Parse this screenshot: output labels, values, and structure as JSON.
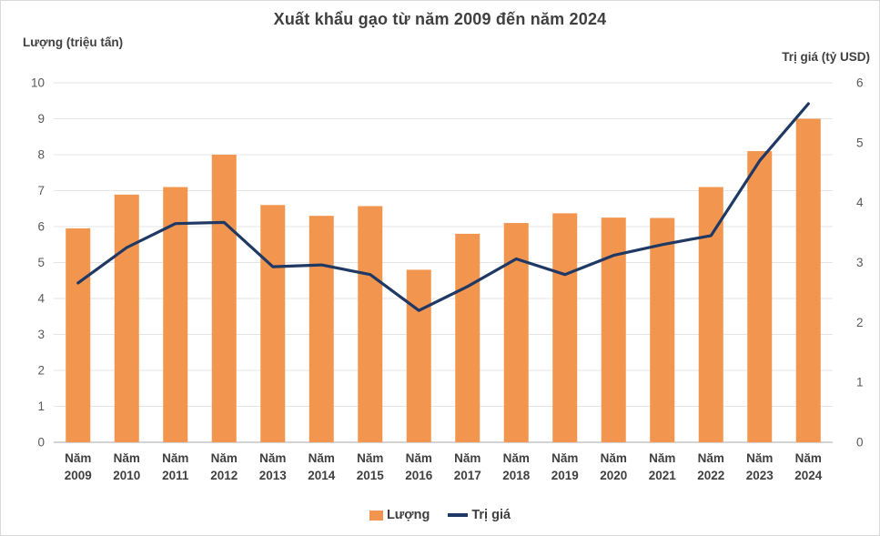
{
  "header": {
    "title": "Xuất khẩu gạo từ năm 2009 đến năm 2024"
  },
  "axes": {
    "left_title": "Lượng (triệu tấn)",
    "right_title": "Trị giá (tỷ USD)"
  },
  "legend": {
    "items": [
      {
        "label": "Lượng",
        "marker": "bar-swatch"
      },
      {
        "label": "Trị giá",
        "marker": "line-swatch"
      }
    ]
  },
  "colors": {
    "bar": "#F2964F",
    "line": "#1F3864",
    "grid": "#E4E4E4",
    "axis_line": "#C6C6C6",
    "title_text": "#404040",
    "tick_text": "#595959",
    "category_text": "#404040"
  },
  "chart_data": {
    "type": "combo-bar-line",
    "title": "Xuất khẩu gạo từ năm 2009 đến năm 2024",
    "category_prefix": "Năm",
    "categories": [
      "2009",
      "2010",
      "2011",
      "2012",
      "2013",
      "2014",
      "2015",
      "2016",
      "2017",
      "2018",
      "2019",
      "2020",
      "2021",
      "2022",
      "2023",
      "2024"
    ],
    "series": [
      {
        "name": "Lượng",
        "type": "bar",
        "axis": "left",
        "values": [
          5.95,
          6.89,
          7.1,
          8.0,
          6.6,
          6.3,
          6.57,
          4.8,
          5.8,
          6.1,
          6.37,
          6.25,
          6.24,
          7.1,
          8.1,
          9.0
        ]
      },
      {
        "name": "Trị giá",
        "type": "line",
        "axis": "right",
        "values": [
          2.66,
          3.25,
          3.65,
          3.67,
          2.93,
          2.96,
          2.8,
          2.2,
          2.6,
          3.06,
          2.8,
          3.12,
          3.3,
          3.45,
          4.7,
          5.65
        ]
      }
    ],
    "left_axis": {
      "label": "Lượng (triệu tấn)",
      "min": 0,
      "max": 10,
      "tick_step": 1,
      "ticks": [
        "0",
        "1",
        "2",
        "3",
        "4",
        "5",
        "6",
        "7",
        "8",
        "9",
        "10"
      ]
    },
    "right_axis": {
      "label": "Trị giá (tỷ USD)",
      "min": 0,
      "max": 6,
      "tick_step": 1,
      "ticks": [
        "0",
        "1",
        "2",
        "3",
        "4",
        "5",
        "6"
      ]
    },
    "grid": "horizontal",
    "legend_position": "bottom"
  }
}
